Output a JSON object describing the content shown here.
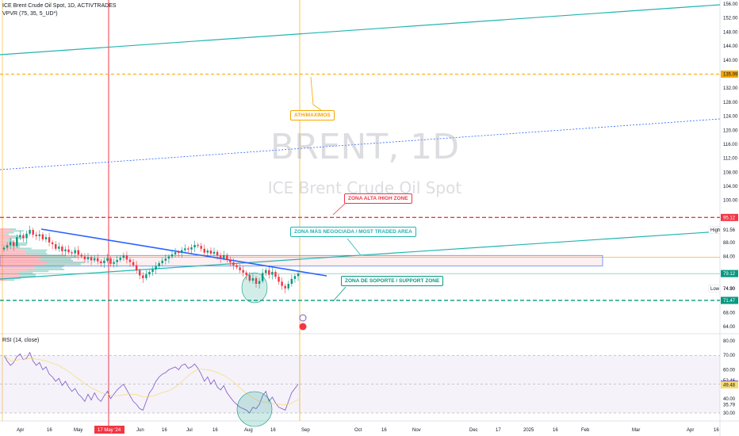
{
  "legend": {
    "symbol": "ICE Brent Crude Oil Spot, 1D, ACTIVTRADES",
    "indicator": "VPVR (75, 35, 5_UD*)",
    "rsi": "RSI (14, close)"
  },
  "watermark": {
    "ticker": "BRENT, 1D",
    "name": "ICE Brent Crude Oil Spot"
  },
  "annotations": {
    "ath": "ATH/MAXIMOS",
    "high_zone": "ZONA ALTA /HIGH ZONE",
    "traded_area": "ZONA MÁS NEGOCIADA / MOST TRADED AREA",
    "support_zone": "ZONA DE SOPORTE / SUPPORT ZONE"
  },
  "colors": {
    "teal": "#22b5b0",
    "orange": "#f7a600",
    "red": "#f23645",
    "green": "#089981",
    "blue": "#2962ff",
    "rsi": "#7e57c2"
  },
  "chart_data": [
    {
      "type": "candlestick",
      "price_ticks": [
        "156.00",
        "152.00",
        "148.00",
        "144.00",
        "140.00",
        "132.00",
        "128.00",
        "124.00",
        "120.00",
        "116.00",
        "112.00",
        "108.00",
        "104.00",
        "100.00",
        "88.00",
        "84.00",
        "74.90",
        "68.00",
        "64.00"
      ],
      "price_markers": [
        {
          "label": "135.99",
          "value": 135.99,
          "color": "#f7a600"
        },
        {
          "label": "95.12",
          "value": 95.12,
          "color": "#f23645"
        },
        {
          "label": "91.56",
          "value": 91.56,
          "color": "#ffffff",
          "tag": "High"
        },
        {
          "label": "79.12",
          "value": 79.12,
          "color": "#089981"
        },
        {
          "label": "74.90",
          "value": 74.9,
          "color": "#ffffff",
          "tag": "Low"
        },
        {
          "label": "71.47",
          "value": 71.47,
          "color": "#089981"
        }
      ],
      "time_ticks": [
        "Apr",
        "16",
        "May",
        "17 May '24",
        "Jun",
        "16",
        "Jul",
        "16",
        "Aug",
        "16",
        "Sep",
        "Oct",
        "16",
        "Nov",
        "Dec",
        "17",
        "2025",
        "16",
        "Feb",
        "Mar",
        "Apr",
        "16"
      ],
      "ylim": [
        62,
        157
      ],
      "closes": [
        86.5,
        87.2,
        88.1,
        87.0,
        89.5,
        90.1,
        89.2,
        90.5,
        91.56,
        90.2,
        89.8,
        90.3,
        88.9,
        89.5,
        88.0,
        87.5,
        86.2,
        86.8,
        85.5,
        86.0,
        85.2,
        84.9,
        85.8,
        84.5,
        84.0,
        83.2,
        83.8,
        82.9,
        83.5,
        82.6,
        82.1,
        82.8,
        83.5,
        81.9,
        82.4,
        83.0,
        83.6,
        84.2,
        83.1,
        82.4,
        81.5,
        80.0,
        78.6,
        77.8,
        78.9,
        79.6,
        80.3,
        81.2,
        82.1,
        82.8,
        83.4,
        84.0,
        84.6,
        85.2,
        85.0,
        85.8,
        86.3,
        86.0,
        86.6,
        87.3,
        87.0,
        86.2,
        85.1,
        85.7,
        84.8,
        85.3,
        84.2,
        83.5,
        84.4,
        83.1,
        82.3,
        81.5,
        80.9,
        80.1,
        79.4,
        78.7,
        77.1,
        77.8,
        76.2,
        77.0,
        79.3,
        80.1,
        78.8,
        79.6,
        78.2,
        76.8,
        75.6,
        74.9,
        76.2,
        77.6,
        78.4,
        79.12
      ]
    },
    {
      "type": "line",
      "name": "RSI (14, close)",
      "y_ticks": [
        "80.00",
        "70.00",
        "60.00",
        "52.46",
        "40.00",
        "35.79",
        "30.00"
      ],
      "y_markers": [
        {
          "label": "50.03",
          "value": 50.03,
          "color": "#7e57c2"
        },
        {
          "label": "49.48",
          "value": 49.48,
          "color": "#f7dc6f"
        }
      ],
      "ylim": [
        28,
        82
      ],
      "values": [
        70,
        66,
        63,
        65,
        69,
        71,
        67,
        68,
        72,
        66,
        63,
        65,
        60,
        62,
        57,
        55,
        52,
        54,
        49,
        52,
        48,
        45,
        47,
        43,
        41,
        38,
        43,
        39,
        44,
        40,
        38,
        42,
        45,
        40,
        43,
        46,
        48,
        50,
        46,
        42,
        38,
        36,
        33,
        32,
        38,
        44,
        47,
        52,
        55,
        57,
        58,
        60,
        61,
        62,
        60,
        63,
        64,
        61,
        62,
        64,
        61,
        57,
        52,
        55,
        50,
        53,
        48,
        46,
        49,
        44,
        41,
        38,
        36,
        34,
        33,
        32,
        30,
        34,
        33,
        36,
        42,
        45,
        38,
        41,
        37,
        34,
        33,
        32,
        38,
        44,
        47,
        50
      ]
    }
  ]
}
